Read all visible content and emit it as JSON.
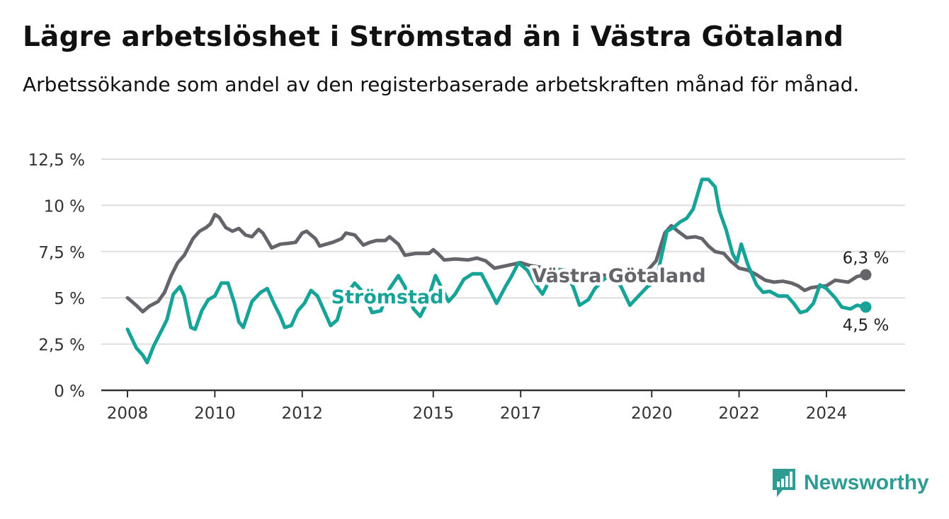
{
  "title": "Lägre arbetslöshet i Strömstad än i Västra Götaland",
  "subtitle": "Arbetssökande som andel av den registerbaserade arbetskraften månad för månad.",
  "brand": {
    "name": "Newsworthy",
    "icon": "bar-chart-flag-icon",
    "color": "#2e9c93"
  },
  "colors": {
    "stromstad": "#17a398",
    "vastra_gotaland": "#66646b",
    "grid": "#dddddd",
    "axis": "#333333"
  },
  "chart_data": {
    "type": "line",
    "title": "Lägre arbetslöshet i Strömstad än i Västra Götaland",
    "xlabel": "",
    "ylabel": "",
    "xlim": [
      2007.4,
      2025.8
    ],
    "ylim": [
      0,
      12.5
    ],
    "y_ticks": [
      {
        "value": 0,
        "label": "0 %"
      },
      {
        "value": 2.5,
        "label": "2,5 %"
      },
      {
        "value": 5,
        "label": "5 %"
      },
      {
        "value": 7.5,
        "label": "7,5 %"
      },
      {
        "value": 10,
        "label": "10 %"
      },
      {
        "value": 12.5,
        "label": "12,5 %"
      }
    ],
    "x_ticks": [
      {
        "value": 2008,
        "label": "2008"
      },
      {
        "value": 2010,
        "label": "2010"
      },
      {
        "value": 2012,
        "label": "2012"
      },
      {
        "value": 2015,
        "label": "2015"
      },
      {
        "value": 2017,
        "label": "2017"
      },
      {
        "value": 2020,
        "label": "2020"
      },
      {
        "value": 2022,
        "label": "2022"
      },
      {
        "value": 2024,
        "label": "2024"
      }
    ],
    "grid": "horizontal",
    "series": [
      {
        "name": "Västra Götaland",
        "color": "#66646b",
        "end_label": "6,3 %",
        "points": [
          [
            2008.0,
            5.0
          ],
          [
            2008.1,
            4.8
          ],
          [
            2008.2,
            4.6
          ],
          [
            2008.35,
            4.25
          ],
          [
            2008.5,
            4.55
          ],
          [
            2008.7,
            4.8
          ],
          [
            2008.85,
            5.3
          ],
          [
            2009.0,
            6.2
          ],
          [
            2009.15,
            6.9
          ],
          [
            2009.3,
            7.3
          ],
          [
            2009.5,
            8.2
          ],
          [
            2009.65,
            8.6
          ],
          [
            2009.8,
            8.8
          ],
          [
            2009.9,
            9.0
          ],
          [
            2010.0,
            9.5
          ],
          [
            2010.1,
            9.35
          ],
          [
            2010.25,
            8.8
          ],
          [
            2010.4,
            8.6
          ],
          [
            2010.55,
            8.75
          ],
          [
            2010.7,
            8.4
          ],
          [
            2010.85,
            8.3
          ],
          [
            2011.0,
            8.7
          ],
          [
            2011.1,
            8.5
          ],
          [
            2011.3,
            7.7
          ],
          [
            2011.5,
            7.9
          ],
          [
            2011.7,
            7.95
          ],
          [
            2011.85,
            8.0
          ],
          [
            2012.0,
            8.5
          ],
          [
            2012.1,
            8.6
          ],
          [
            2012.3,
            8.2
          ],
          [
            2012.4,
            7.8
          ],
          [
            2012.55,
            7.9
          ],
          [
            2012.7,
            8.0
          ],
          [
            2012.9,
            8.2
          ],
          [
            2013.0,
            8.5
          ],
          [
            2013.2,
            8.4
          ],
          [
            2013.4,
            7.85
          ],
          [
            2013.55,
            8.0
          ],
          [
            2013.7,
            8.1
          ],
          [
            2013.9,
            8.1
          ],
          [
            2014.0,
            8.3
          ],
          [
            2014.2,
            7.9
          ],
          [
            2014.35,
            7.3
          ],
          [
            2014.6,
            7.4
          ],
          [
            2014.9,
            7.4
          ],
          [
            2015.0,
            7.6
          ],
          [
            2015.1,
            7.4
          ],
          [
            2015.25,
            7.05
          ],
          [
            2015.5,
            7.1
          ],
          [
            2015.8,
            7.05
          ],
          [
            2016.0,
            7.15
          ],
          [
            2016.2,
            7.0
          ],
          [
            2016.4,
            6.6
          ],
          [
            2016.6,
            6.7
          ],
          [
            2016.8,
            6.8
          ],
          [
            2017.0,
            6.9
          ],
          [
            2017.2,
            6.75
          ],
          [
            2017.6,
            6.6
          ],
          [
            2018.0,
            6.5
          ],
          [
            2018.5,
            6.3
          ],
          [
            2019.0,
            6.2
          ],
          [
            2019.5,
            6.2
          ],
          [
            2019.8,
            6.2
          ],
          [
            2020.1,
            7.0
          ],
          [
            2020.3,
            8.5
          ],
          [
            2020.45,
            8.9
          ],
          [
            2020.6,
            8.6
          ],
          [
            2020.8,
            8.25
          ],
          [
            2021.0,
            8.3
          ],
          [
            2021.15,
            8.2
          ],
          [
            2021.3,
            7.8
          ],
          [
            2021.45,
            7.5
          ],
          [
            2021.65,
            7.4
          ],
          [
            2021.8,
            7.0
          ],
          [
            2022.0,
            6.6
          ],
          [
            2022.2,
            6.5
          ],
          [
            2022.4,
            6.25
          ],
          [
            2022.6,
            5.95
          ],
          [
            2022.8,
            5.85
          ],
          [
            2023.0,
            5.9
          ],
          [
            2023.2,
            5.8
          ],
          [
            2023.35,
            5.65
          ],
          [
            2023.5,
            5.4
          ],
          [
            2023.65,
            5.55
          ],
          [
            2023.8,
            5.6
          ],
          [
            2024.0,
            5.65
          ],
          [
            2024.2,
            5.95
          ],
          [
            2024.35,
            5.9
          ],
          [
            2024.5,
            5.85
          ],
          [
            2024.7,
            6.15
          ],
          [
            2024.9,
            6.25
          ]
        ]
      },
      {
        "name": "Strömstad",
        "color": "#17a398",
        "end_label": "4,5 %",
        "points": [
          [
            2008.0,
            3.3
          ],
          [
            2008.1,
            2.8
          ],
          [
            2008.2,
            2.3
          ],
          [
            2008.35,
            1.9
          ],
          [
            2008.45,
            1.5
          ],
          [
            2008.6,
            2.4
          ],
          [
            2008.75,
            3.1
          ],
          [
            2008.9,
            3.8
          ],
          [
            2009.05,
            5.2
          ],
          [
            2009.2,
            5.6
          ],
          [
            2009.3,
            5.1
          ],
          [
            2009.45,
            3.4
          ],
          [
            2009.55,
            3.3
          ],
          [
            2009.7,
            4.3
          ],
          [
            2009.85,
            4.9
          ],
          [
            2010.0,
            5.1
          ],
          [
            2010.15,
            5.8
          ],
          [
            2010.3,
            5.8
          ],
          [
            2010.45,
            4.7
          ],
          [
            2010.55,
            3.7
          ],
          [
            2010.65,
            3.4
          ],
          [
            2010.85,
            4.8
          ],
          [
            2011.05,
            5.3
          ],
          [
            2011.2,
            5.5
          ],
          [
            2011.35,
            4.7
          ],
          [
            2011.5,
            4.0
          ],
          [
            2011.6,
            3.4
          ],
          [
            2011.75,
            3.5
          ],
          [
            2011.9,
            4.3
          ],
          [
            2012.05,
            4.7
          ],
          [
            2012.2,
            5.4
          ],
          [
            2012.35,
            5.1
          ],
          [
            2012.5,
            4.3
          ],
          [
            2012.65,
            3.5
          ],
          [
            2012.8,
            3.8
          ],
          [
            2012.95,
            5.0
          ],
          [
            2013.2,
            5.8
          ],
          [
            2013.4,
            5.3
          ],
          [
            2013.6,
            4.2
          ],
          [
            2013.8,
            4.3
          ],
          [
            2014.0,
            5.5
          ],
          [
            2014.2,
            6.2
          ],
          [
            2014.35,
            5.6
          ],
          [
            2014.55,
            4.4
          ],
          [
            2014.7,
            4.0
          ],
          [
            2014.85,
            4.7
          ],
          [
            2015.05,
            6.2
          ],
          [
            2015.2,
            5.5
          ],
          [
            2015.35,
            4.8
          ],
          [
            2015.5,
            5.2
          ],
          [
            2015.7,
            6.0
          ],
          [
            2015.9,
            6.3
          ],
          [
            2016.1,
            6.3
          ],
          [
            2016.3,
            5.4
          ],
          [
            2016.45,
            4.7
          ],
          [
            2016.65,
            5.6
          ],
          [
            2016.8,
            6.2
          ],
          [
            2016.95,
            6.9
          ],
          [
            2017.15,
            6.5
          ],
          [
            2017.35,
            5.7
          ],
          [
            2017.5,
            5.2
          ],
          [
            2017.65,
            5.9
          ],
          [
            2017.85,
            6.5
          ],
          [
            2018.0,
            6.5
          ],
          [
            2018.2,
            5.6
          ],
          [
            2018.35,
            4.6
          ],
          [
            2018.55,
            4.9
          ],
          [
            2018.7,
            5.5
          ],
          [
            2018.9,
            6.0
          ],
          [
            2019.1,
            6.2
          ],
          [
            2019.3,
            5.6
          ],
          [
            2019.5,
            4.6
          ],
          [
            2019.7,
            5.1
          ],
          [
            2019.9,
            5.6
          ],
          [
            2020.1,
            5.9
          ],
          [
            2020.2,
            7.0
          ],
          [
            2020.35,
            8.6
          ],
          [
            2020.5,
            8.8
          ],
          [
            2020.65,
            9.1
          ],
          [
            2020.8,
            9.3
          ],
          [
            2020.95,
            9.8
          ],
          [
            2021.05,
            10.6
          ],
          [
            2021.15,
            11.4
          ],
          [
            2021.3,
            11.4
          ],
          [
            2021.45,
            11.0
          ],
          [
            2021.55,
            9.7
          ],
          [
            2021.7,
            8.7
          ],
          [
            2021.85,
            7.4
          ],
          [
            2021.95,
            6.95
          ],
          [
            2022.05,
            7.9
          ],
          [
            2022.2,
            6.8
          ],
          [
            2022.4,
            5.7
          ],
          [
            2022.55,
            5.3
          ],
          [
            2022.7,
            5.35
          ],
          [
            2022.9,
            5.1
          ],
          [
            2023.1,
            5.1
          ],
          [
            2023.25,
            4.7
          ],
          [
            2023.4,
            4.2
          ],
          [
            2023.55,
            4.3
          ],
          [
            2023.7,
            4.7
          ],
          [
            2023.85,
            5.7
          ],
          [
            2024.0,
            5.5
          ],
          [
            2024.2,
            5.0
          ],
          [
            2024.35,
            4.5
          ],
          [
            2024.55,
            4.4
          ],
          [
            2024.7,
            4.6
          ],
          [
            2024.9,
            4.5
          ]
        ]
      }
    ],
    "annotations": [
      {
        "text": "Strömstad",
        "series": "Strömstad",
        "x": 2013.95,
        "y": 5.05
      },
      {
        "text": "Västra Götaland",
        "series": "Västra Götaland",
        "x": 2019.25,
        "y": 6.2
      }
    ]
  }
}
